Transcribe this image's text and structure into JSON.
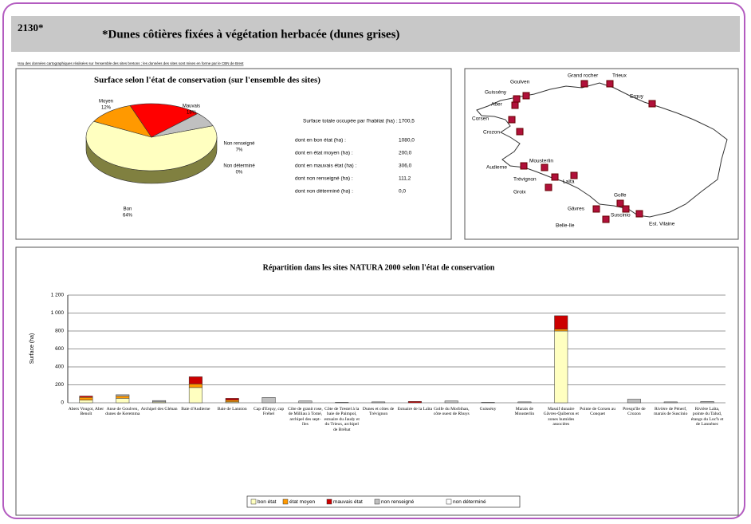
{
  "header": {
    "code": "2130*",
    "title": "*Dunes côtières fixées à végétation herbacée (dunes grises)",
    "note": "Issu des données cartographiques réalisées sur l'ensemble des sites bretons ; les données des sites sont mises en forme par le CBN de Brest"
  },
  "pie_chart": {
    "type": "pie",
    "title": "Surface selon l'état de conservation (sur l'ensemble des sites)",
    "categories": [
      "Bon",
      "Moyen",
      "Mauvais",
      "Non renseigné",
      "Non déterminé"
    ],
    "values": [
      64,
      12,
      18,
      7,
      0
    ],
    "value_labels": [
      "64%",
      "12%",
      "18%",
      "7%",
      "0%"
    ],
    "colors": [
      "#ffffc0",
      "#ff9900",
      "#ff0000",
      "#c0c0c0",
      "#ffffff"
    ]
  },
  "summary": {
    "rows": [
      {
        "label": "Surface totale occupée par l'habitat (ha) :",
        "value": "1700,5"
      },
      {
        "label": "dont en bon état (ha) :",
        "value": "1080,0"
      },
      {
        "label": "dont en état moyen (ha) :",
        "value": "200,0"
      },
      {
        "label": "dont en mauvais état (ha) :",
        "value": "306,0"
      },
      {
        "label": "dont non renseigné (ha) :",
        "value": "111,2"
      },
      {
        "label": "dont non déterminé (ha) :",
        "value": "0,0"
      }
    ]
  },
  "map": {
    "sites": [
      "Goulven",
      "Grand rocher",
      "Trieux",
      "Erquy",
      "Guissény",
      "Aber",
      "Corsen",
      "Crozon",
      "Audierne",
      "Mousterlin",
      "Trévignon",
      "Laïta",
      "Groix",
      "Golfe",
      "Gâvres",
      "Suscinio",
      "Belle-Ile",
      "Est. Vilaine"
    ]
  },
  "chart_data": {
    "type": "bar",
    "stacked": true,
    "title": "Répartition dans les sites NATURA 2000 selon l'état de conservation",
    "ylabel": "Surface (ha)",
    "categories": [
      "Abers Vougot, Aber Benoît",
      "Anse de Goulven, dunes de Keremma",
      "Archipel des Glénan",
      "Baie d'Audierne",
      "Baie de Lannion",
      "Cap d'Erquy, cap Fréhel",
      "Côte de granit rose, de Milliau à Tomé, archipel des sept-îles",
      "Côte de Trestel à la baie de Paimpol, estuaire du Jaudy et du Trieux, archipel de Bréhat",
      "Dunes et côtes de Trévignon",
      "Estuaire de la Laïta",
      "Golfe du Morbihan, côte ouest de Rhuys",
      "Guissény",
      "Marais de Mousterlin",
      "Massif dunaire Gâvres-Quiberon et zones humides associées",
      "Pointe de Corsen au Conquet",
      "Presqu'île de Crozon",
      "Rivière de Pénerf, marais de Suscinio",
      "Rivière Laïta, pointe du Talud, étangs du Loc'h et de Lannénec"
    ],
    "series": [
      {
        "name": "bon état",
        "color": "#ffffc0",
        "values": [
          30,
          50,
          10,
          170,
          10,
          0,
          0,
          0,
          0,
          0,
          0,
          0,
          0,
          800,
          0,
          0,
          0,
          0
        ]
      },
      {
        "name": "état moyen",
        "color": "#ff9900",
        "values": [
          30,
          25,
          0,
          40,
          20,
          0,
          0,
          0,
          0,
          0,
          0,
          0,
          0,
          20,
          0,
          0,
          0,
          0
        ]
      },
      {
        "name": "mauvais état",
        "color": "#cc0000",
        "values": [
          15,
          0,
          0,
          80,
          20,
          0,
          0,
          0,
          0,
          15,
          0,
          0,
          0,
          150,
          0,
          0,
          0,
          0
        ]
      },
      {
        "name": "non renseigné",
        "color": "#c0c0c0",
        "values": [
          0,
          15,
          15,
          0,
          0,
          60,
          20,
          5,
          10,
          0,
          20,
          5,
          10,
          0,
          0,
          40,
          10,
          15
        ]
      },
      {
        "name": "non déterminé",
        "color": "#ffffff",
        "values": [
          0,
          0,
          0,
          0,
          0,
          0,
          0,
          0,
          0,
          0,
          0,
          0,
          0,
          0,
          0,
          0,
          0,
          0
        ]
      }
    ],
    "ylim": [
      0,
      1200
    ],
    "yticks": [
      0,
      200,
      400,
      600,
      800,
      {
        "value": 1000,
        "label": "1 000"
      },
      {
        "value": 1200,
        "label": "1 200"
      }
    ],
    "grid": true,
    "legend": "bottom"
  }
}
